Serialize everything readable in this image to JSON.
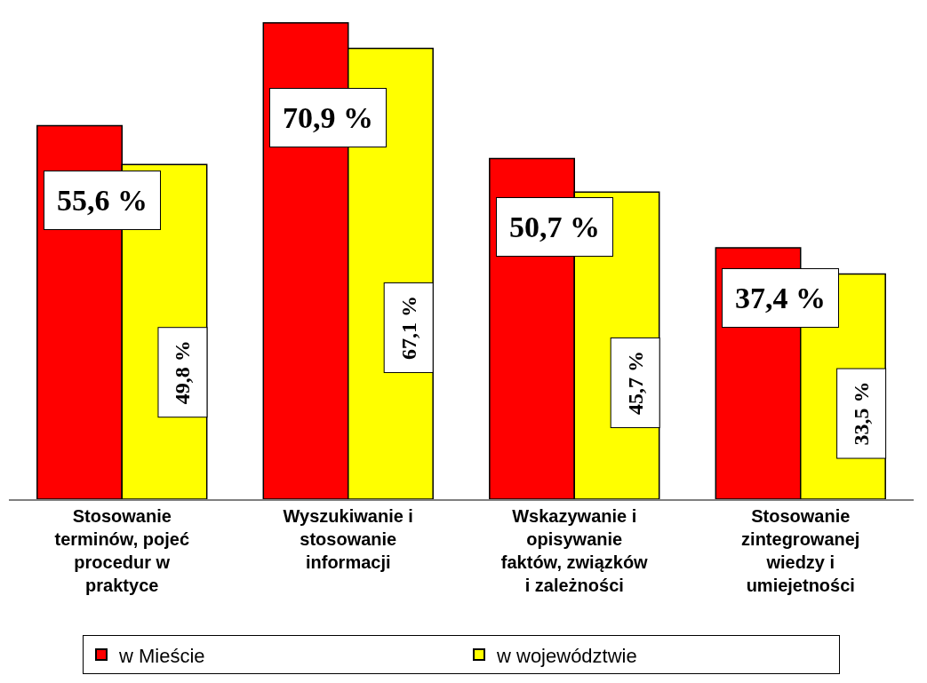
{
  "chart_data": {
    "type": "bar",
    "categories": [
      "Stosowanie\nterminów, pojeć\nprocedur w\npraktyce",
      "Wyszukiwanie i\nstosowanie\ninformacji",
      "Wskazywanie i\nopisywanie\nfaktów, związków\ni zależności",
      "Stosowanie\nzintegrowanej\nwiedzy i\numiejetności"
    ],
    "series": [
      {
        "name": "w Mieście",
        "color": "#ff0000",
        "values": [
          55.6,
          70.9,
          50.7,
          37.4
        ],
        "value_labels": [
          "55,6 %",
          "70,9 %",
          "50,7 %",
          "37,4 %"
        ]
      },
      {
        "name": "w województwie",
        "color": "#ffff00",
        "values": [
          49.8,
          67.1,
          45.7,
          33.5
        ],
        "value_labels": [
          "49,8 %",
          "67,1 %",
          "45,7 %",
          "33,5 %"
        ]
      }
    ],
    "legend": "bottom"
  }
}
